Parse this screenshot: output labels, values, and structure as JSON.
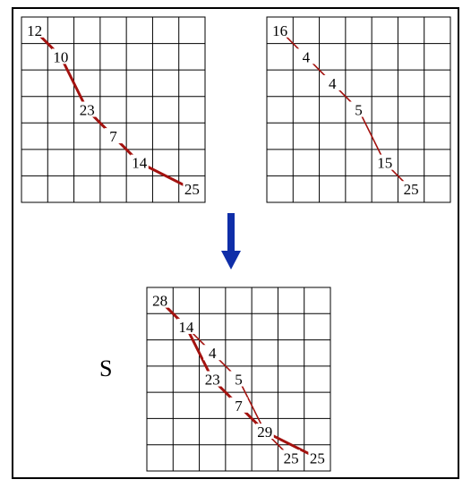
{
  "grids": [
    {
      "id": "top-left",
      "rows": 7,
      "cols": 7,
      "cells": [
        {
          "r": 0,
          "c": 0,
          "v": "12"
        },
        {
          "r": 1,
          "c": 1,
          "v": "10"
        },
        {
          "r": 3,
          "c": 2,
          "v": "23"
        },
        {
          "r": 4,
          "c": 3,
          "v": "7"
        },
        {
          "r": 5,
          "c": 4,
          "v": "14"
        },
        {
          "r": 6,
          "c": 6,
          "v": "25"
        }
      ],
      "path": [
        [
          0,
          0
        ],
        [
          1,
          1
        ],
        [
          3,
          2
        ],
        [
          4,
          3
        ],
        [
          5,
          4
        ],
        [
          6,
          6
        ]
      ],
      "path_style": "thick"
    },
    {
      "id": "top-right",
      "rows": 7,
      "cols": 7,
      "cells": [
        {
          "r": 0,
          "c": 0,
          "v": "16"
        },
        {
          "r": 1,
          "c": 1,
          "v": "4"
        },
        {
          "r": 2,
          "c": 2,
          "v": "4"
        },
        {
          "r": 3,
          "c": 3,
          "v": "5"
        },
        {
          "r": 5,
          "c": 4,
          "v": "15"
        },
        {
          "r": 6,
          "c": 5,
          "v": "25"
        }
      ],
      "path": [
        [
          0,
          0
        ],
        [
          1,
          1
        ],
        [
          2,
          2
        ],
        [
          3,
          3
        ],
        [
          5,
          4
        ],
        [
          6,
          5
        ]
      ],
      "path_style": "thin"
    },
    {
      "id": "bottom",
      "rows": 7,
      "cols": 7,
      "cells": [
        {
          "r": 0,
          "c": 0,
          "v": "28"
        },
        {
          "r": 1,
          "c": 1,
          "v": "14"
        },
        {
          "r": 2,
          "c": 2,
          "v": "4"
        },
        {
          "r": 3,
          "c": 3,
          "v": "5"
        },
        {
          "r": 3,
          "c": 2,
          "v": "23"
        },
        {
          "r": 4,
          "c": 3,
          "v": "7"
        },
        {
          "r": 5,
          "c": 4,
          "v": "29"
        },
        {
          "r": 6,
          "c": 5,
          "v": "25"
        },
        {
          "r": 6,
          "c": 6,
          "v": "25"
        }
      ],
      "paths": [
        {
          "style": "thick",
          "pts": [
            [
              0,
              0
            ],
            [
              1,
              1
            ],
            [
              3,
              2
            ],
            [
              4,
              3
            ],
            [
              5,
              4
            ],
            [
              6,
              6
            ]
          ]
        },
        {
          "style": "thin",
          "pts": [
            [
              1,
              1
            ],
            [
              2,
              2
            ],
            [
              3,
              3
            ],
            [
              5,
              4
            ],
            [
              6,
              5
            ]
          ]
        }
      ]
    }
  ],
  "merge_label": "S",
  "colors": {
    "path": "#a3120f",
    "arrow": "#0f2ea8",
    "grid": "#000000"
  },
  "arrow_icon": "down-arrow-icon"
}
